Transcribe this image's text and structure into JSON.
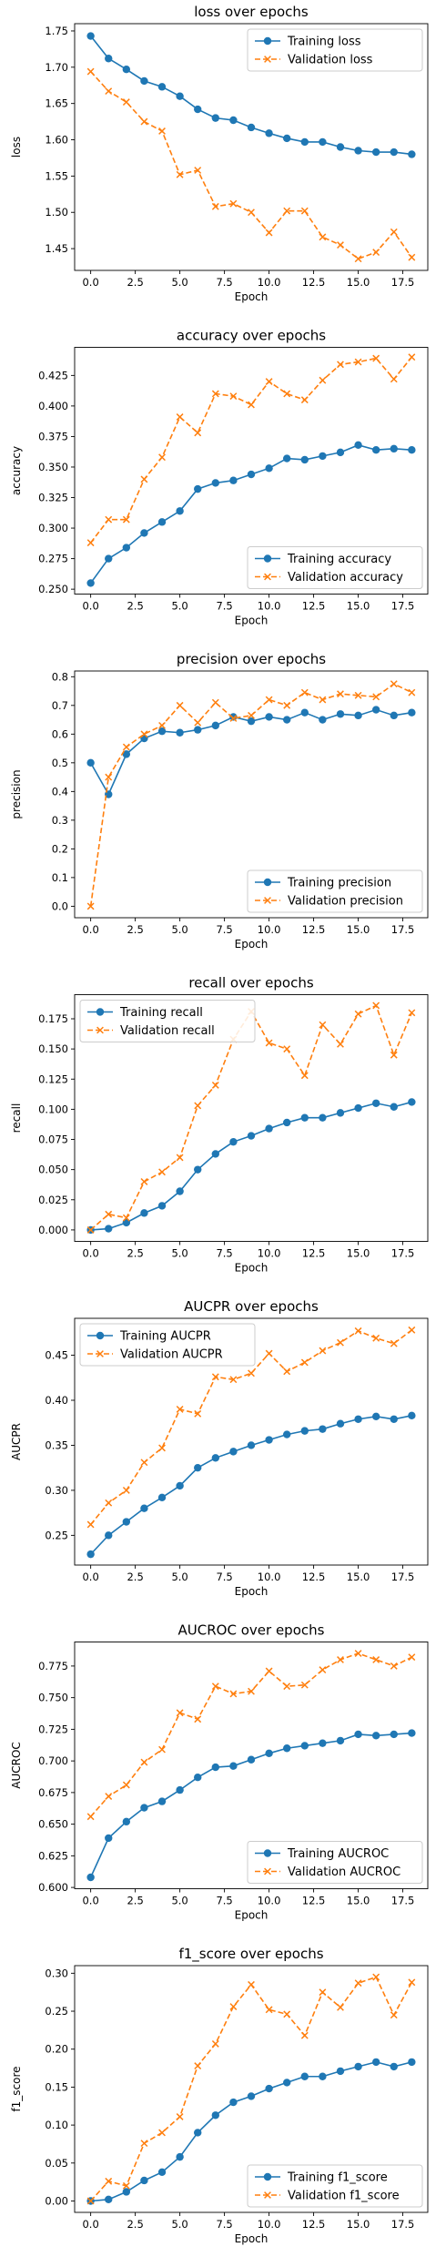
{
  "colors": {
    "training": "#1f77b4",
    "validation": "#ff7f0e"
  },
  "chart_data": [
    {
      "type": "line",
      "title": "loss over epochs",
      "xlabel": "Epoch",
      "ylabel": "loss",
      "xlim": [
        -0.9,
        18.9
      ],
      "ylim": [
        1.42,
        1.76
      ],
      "xticks": [
        0.0,
        2.5,
        5.0,
        7.5,
        10.0,
        12.5,
        15.0,
        17.5
      ],
      "xtick_labels": [
        "0.0",
        "2.5",
        "5.0",
        "7.5",
        "10.0",
        "12.5",
        "15.0",
        "17.5"
      ],
      "yticks": [
        1.45,
        1.5,
        1.55,
        1.6,
        1.65,
        1.7,
        1.75
      ],
      "ytick_labels": [
        "1.45",
        "1.50",
        "1.55",
        "1.60",
        "1.65",
        "1.70",
        "1.75"
      ],
      "legend": "top-right",
      "x": [
        0,
        1,
        2,
        3,
        4,
        5,
        6,
        7,
        8,
        9,
        10,
        11,
        12,
        13,
        14,
        15,
        16,
        17,
        18
      ],
      "series": [
        {
          "name": "Training loss",
          "style": "training",
          "values": [
            1.743,
            1.712,
            1.697,
            1.681,
            1.673,
            1.66,
            1.642,
            1.63,
            1.627,
            1.617,
            1.609,
            1.602,
            1.597,
            1.597,
            1.59,
            1.585,
            1.583,
            1.583,
            1.58
          ]
        },
        {
          "name": "Validation loss",
          "style": "validation",
          "values": [
            1.694,
            1.667,
            1.652,
            1.625,
            1.612,
            1.552,
            1.558,
            1.508,
            1.512,
            1.5,
            1.472,
            1.502,
            1.502,
            1.466,
            1.455,
            1.436,
            1.445,
            1.473,
            1.438
          ]
        }
      ]
    },
    {
      "type": "line",
      "title": "accuracy over epochs",
      "xlabel": "Epoch",
      "ylabel": "accuracy",
      "xlim": [
        -0.9,
        18.9
      ],
      "ylim": [
        0.246,
        0.448
      ],
      "xticks": [
        0.0,
        2.5,
        5.0,
        7.5,
        10.0,
        12.5,
        15.0,
        17.5
      ],
      "xtick_labels": [
        "0.0",
        "2.5",
        "5.0",
        "7.5",
        "10.0",
        "12.5",
        "15.0",
        "17.5"
      ],
      "yticks": [
        0.25,
        0.275,
        0.3,
        0.325,
        0.35,
        0.375,
        0.4,
        0.425
      ],
      "ytick_labels": [
        "0.250",
        "0.275",
        "0.300",
        "0.325",
        "0.350",
        "0.375",
        "0.400",
        "0.425"
      ],
      "legend": "bottom-right",
      "x": [
        0,
        1,
        2,
        3,
        4,
        5,
        6,
        7,
        8,
        9,
        10,
        11,
        12,
        13,
        14,
        15,
        16,
        17,
        18
      ],
      "series": [
        {
          "name": "Training accuracy",
          "style": "training",
          "values": [
            0.255,
            0.275,
            0.284,
            0.296,
            0.305,
            0.314,
            0.332,
            0.337,
            0.339,
            0.344,
            0.349,
            0.357,
            0.356,
            0.359,
            0.362,
            0.368,
            0.364,
            0.365,
            0.364
          ]
        },
        {
          "name": "Validation accuracy",
          "style": "validation",
          "values": [
            0.288,
            0.307,
            0.307,
            0.34,
            0.358,
            0.391,
            0.378,
            0.41,
            0.408,
            0.401,
            0.42,
            0.41,
            0.405,
            0.421,
            0.434,
            0.436,
            0.439,
            0.422,
            0.44
          ]
        }
      ]
    },
    {
      "type": "line",
      "title": "precision over epochs",
      "xlabel": "Epoch",
      "ylabel": "precision",
      "xlim": [
        -0.9,
        18.9
      ],
      "ylim": [
        -0.04,
        0.82
      ],
      "xticks": [
        0.0,
        2.5,
        5.0,
        7.5,
        10.0,
        12.5,
        15.0,
        17.5
      ],
      "xtick_labels": [
        "0.0",
        "2.5",
        "5.0",
        "7.5",
        "10.0",
        "12.5",
        "15.0",
        "17.5"
      ],
      "yticks": [
        0.0,
        0.1,
        0.2,
        0.3,
        0.4,
        0.5,
        0.6,
        0.7,
        0.8
      ],
      "ytick_labels": [
        "0.0",
        "0.1",
        "0.2",
        "0.3",
        "0.4",
        "0.5",
        "0.6",
        "0.7",
        "0.8"
      ],
      "legend": "bottom-right",
      "x": [
        0,
        1,
        2,
        3,
        4,
        5,
        6,
        7,
        8,
        9,
        10,
        11,
        12,
        13,
        14,
        15,
        16,
        17,
        18
      ],
      "series": [
        {
          "name": "Training precision",
          "style": "training",
          "values": [
            0.5,
            0.39,
            0.53,
            0.585,
            0.61,
            0.605,
            0.615,
            0.63,
            0.66,
            0.645,
            0.66,
            0.65,
            0.675,
            0.65,
            0.67,
            0.665,
            0.685,
            0.665,
            0.675
          ]
        },
        {
          "name": "Validation precision",
          "style": "validation",
          "values": [
            0.0,
            0.45,
            0.555,
            0.6,
            0.63,
            0.7,
            0.64,
            0.71,
            0.655,
            0.665,
            0.72,
            0.7,
            0.745,
            0.72,
            0.74,
            0.735,
            0.73,
            0.775,
            0.745
          ]
        }
      ]
    },
    {
      "type": "line",
      "title": "recall over epochs",
      "xlabel": "Epoch",
      "ylabel": "recall",
      "xlim": [
        -0.9,
        18.9
      ],
      "ylim": [
        -0.0095,
        0.195
      ],
      "xticks": [
        0.0,
        2.5,
        5.0,
        7.5,
        10.0,
        12.5,
        15.0,
        17.5
      ],
      "xtick_labels": [
        "0.0",
        "2.5",
        "5.0",
        "7.5",
        "10.0",
        "12.5",
        "15.0",
        "17.5"
      ],
      "yticks": [
        0.0,
        0.025,
        0.05,
        0.075,
        0.1,
        0.125,
        0.15,
        0.175
      ],
      "ytick_labels": [
        "0.000",
        "0.025",
        "0.050",
        "0.075",
        "0.100",
        "0.125",
        "0.150",
        "0.175"
      ],
      "legend": "top-left",
      "x": [
        0,
        1,
        2,
        3,
        4,
        5,
        6,
        7,
        8,
        9,
        10,
        11,
        12,
        13,
        14,
        15,
        16,
        17,
        18
      ],
      "series": [
        {
          "name": "Training recall",
          "style": "training",
          "values": [
            0.0,
            0.001,
            0.006,
            0.014,
            0.02,
            0.032,
            0.05,
            0.063,
            0.073,
            0.078,
            0.084,
            0.089,
            0.093,
            0.093,
            0.097,
            0.101,
            0.105,
            0.102,
            0.106
          ]
        },
        {
          "name": "Validation recall",
          "style": "validation",
          "values": [
            0.0,
            0.013,
            0.01,
            0.04,
            0.048,
            0.06,
            0.103,
            0.12,
            0.158,
            0.181,
            0.155,
            0.15,
            0.128,
            0.17,
            0.154,
            0.179,
            0.186,
            0.145,
            0.18
          ]
        }
      ]
    },
    {
      "type": "line",
      "title": "AUCPR over epochs",
      "xlabel": "Epoch",
      "ylabel": "AUCPR",
      "xlim": [
        -0.9,
        18.9
      ],
      "ylim": [
        0.217,
        0.491
      ],
      "xticks": [
        0.0,
        2.5,
        5.0,
        7.5,
        10.0,
        12.5,
        15.0,
        17.5
      ],
      "xtick_labels": [
        "0.0",
        "2.5",
        "5.0",
        "7.5",
        "10.0",
        "12.5",
        "15.0",
        "17.5"
      ],
      "yticks": [
        0.25,
        0.3,
        0.35,
        0.4,
        0.45
      ],
      "ytick_labels": [
        "0.25",
        "0.30",
        "0.35",
        "0.40",
        "0.45"
      ],
      "legend": "top-left",
      "x": [
        0,
        1,
        2,
        3,
        4,
        5,
        6,
        7,
        8,
        9,
        10,
        11,
        12,
        13,
        14,
        15,
        16,
        17,
        18
      ],
      "series": [
        {
          "name": "Training AUCPR",
          "style": "training",
          "values": [
            0.229,
            0.25,
            0.265,
            0.28,
            0.292,
            0.305,
            0.325,
            0.336,
            0.343,
            0.35,
            0.356,
            0.362,
            0.366,
            0.368,
            0.374,
            0.379,
            0.382,
            0.379,
            0.383
          ]
        },
        {
          "name": "Validation AUCPR",
          "style": "validation",
          "values": [
            0.262,
            0.286,
            0.3,
            0.331,
            0.347,
            0.39,
            0.385,
            0.426,
            0.423,
            0.43,
            0.452,
            0.432,
            0.442,
            0.455,
            0.464,
            0.477,
            0.469,
            0.463,
            0.478
          ]
        }
      ]
    },
    {
      "type": "line",
      "title": "AUCROC over epochs",
      "xlabel": "Epoch",
      "ylabel": "AUCROC",
      "xlim": [
        -0.9,
        18.9
      ],
      "ylim": [
        0.599,
        0.794
      ],
      "xticks": [
        0.0,
        2.5,
        5.0,
        7.5,
        10.0,
        12.5,
        15.0,
        17.5
      ],
      "xtick_labels": [
        "0.0",
        "2.5",
        "5.0",
        "7.5",
        "10.0",
        "12.5",
        "15.0",
        "17.5"
      ],
      "yticks": [
        0.6,
        0.625,
        0.65,
        0.675,
        0.7,
        0.725,
        0.75,
        0.775
      ],
      "ytick_labels": [
        "0.600",
        "0.625",
        "0.650",
        "0.675",
        "0.700",
        "0.725",
        "0.750",
        "0.775"
      ],
      "legend": "bottom-right",
      "x": [
        0,
        1,
        2,
        3,
        4,
        5,
        6,
        7,
        8,
        9,
        10,
        11,
        12,
        13,
        14,
        15,
        16,
        17,
        18
      ],
      "series": [
        {
          "name": "Training AUCROC",
          "style": "training",
          "values": [
            0.608,
            0.639,
            0.652,
            0.663,
            0.668,
            0.677,
            0.687,
            0.695,
            0.696,
            0.701,
            0.706,
            0.71,
            0.712,
            0.714,
            0.716,
            0.721,
            0.72,
            0.721,
            0.722
          ]
        },
        {
          "name": "Validation AUCROC",
          "style": "validation",
          "values": [
            0.656,
            0.672,
            0.681,
            0.699,
            0.709,
            0.738,
            0.733,
            0.759,
            0.753,
            0.755,
            0.771,
            0.759,
            0.76,
            0.772,
            0.78,
            0.785,
            0.78,
            0.775,
            0.782
          ]
        }
      ]
    },
    {
      "type": "line",
      "title": "f1_score over epochs",
      "xlabel": "Epoch",
      "ylabel": "f1_score",
      "xlim": [
        -0.9,
        18.9
      ],
      "ylim": [
        -0.015,
        0.31
      ],
      "xticks": [
        0.0,
        2.5,
        5.0,
        7.5,
        10.0,
        12.5,
        15.0,
        17.5
      ],
      "xtick_labels": [
        "0.0",
        "2.5",
        "5.0",
        "7.5",
        "10.0",
        "12.5",
        "15.0",
        "17.5"
      ],
      "yticks": [
        0.0,
        0.05,
        0.1,
        0.15,
        0.2,
        0.25,
        0.3
      ],
      "ytick_labels": [
        "0.00",
        "0.05",
        "0.10",
        "0.15",
        "0.20",
        "0.25",
        "0.30"
      ],
      "legend": "bottom-right",
      "x": [
        0,
        1,
        2,
        3,
        4,
        5,
        6,
        7,
        8,
        9,
        10,
        11,
        12,
        13,
        14,
        15,
        16,
        17,
        18
      ],
      "series": [
        {
          "name": "Training f1_score",
          "style": "training",
          "values": [
            0.0,
            0.002,
            0.012,
            0.027,
            0.038,
            0.058,
            0.09,
            0.113,
            0.13,
            0.138,
            0.148,
            0.156,
            0.164,
            0.164,
            0.171,
            0.177,
            0.183,
            0.177,
            0.183
          ]
        },
        {
          "name": "Validation f1_score",
          "style": "validation",
          "values": [
            0.0,
            0.026,
            0.02,
            0.076,
            0.09,
            0.111,
            0.178,
            0.207,
            0.256,
            0.285,
            0.252,
            0.246,
            0.218,
            0.275,
            0.255,
            0.287,
            0.295,
            0.245,
            0.288
          ]
        }
      ]
    }
  ]
}
